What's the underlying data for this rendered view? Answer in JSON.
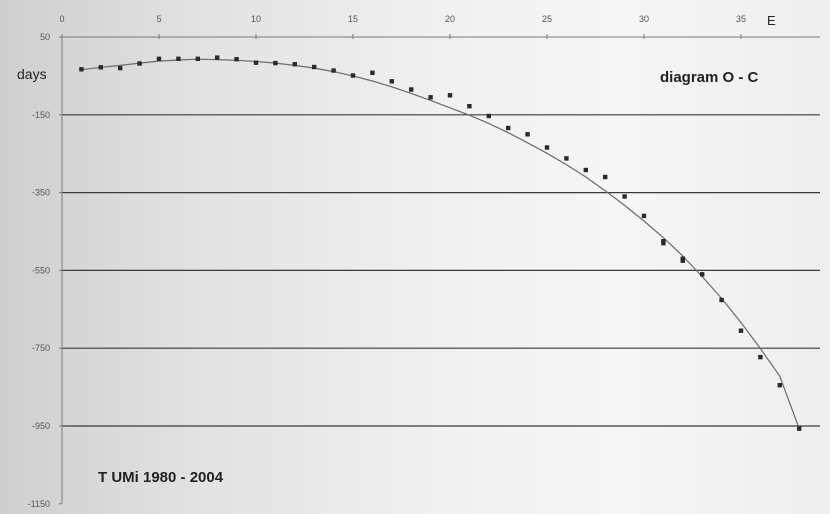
{
  "chart_data": {
    "type": "scatter",
    "title": "diagram O - C",
    "subtitle": "T UMi 1980 - 2004",
    "xlabel": "E",
    "ylabel": "days",
    "xlim": [
      0,
      38
    ],
    "ylim": [
      -1150,
      50
    ],
    "x_ticks": [
      0,
      5,
      10,
      15,
      20,
      25,
      30,
      35
    ],
    "y_ticks": [
      50,
      -150,
      -350,
      -550,
      -750,
      -950,
      -1150
    ],
    "y_tick_labels": [
      "50",
      "-150",
      "-350",
      "-550",
      "-750",
      "-950",
      "-1150"
    ],
    "horizontal_grid": true,
    "series": [
      {
        "kind": "points",
        "points": [
          [
            1,
            -33
          ],
          [
            2,
            -28
          ],
          [
            3,
            -30
          ],
          [
            4,
            -18
          ],
          [
            5,
            -6
          ],
          [
            6,
            -6
          ],
          [
            7,
            -6
          ],
          [
            8,
            -3
          ],
          [
            9,
            -7
          ],
          [
            10,
            -16
          ],
          [
            11,
            -17
          ],
          [
            12,
            -20
          ],
          [
            13,
            -27
          ],
          [
            14,
            -36
          ],
          [
            15,
            -49
          ],
          [
            16,
            -42
          ],
          [
            17,
            -64
          ],
          [
            18,
            -85
          ],
          [
            19,
            -105
          ],
          [
            20,
            -100
          ],
          [
            21,
            -128
          ],
          [
            22,
            -153
          ],
          [
            23,
            -184
          ],
          [
            24,
            -200
          ],
          [
            25,
            -234
          ],
          [
            26,
            -262
          ],
          [
            27,
            -292
          ],
          [
            28,
            -310
          ],
          [
            29,
            -360
          ],
          [
            30,
            -410
          ],
          [
            31,
            -475
          ],
          [
            31,
            -480
          ],
          [
            32,
            -520
          ],
          [
            32,
            -525
          ],
          [
            33,
            -560
          ],
          [
            34,
            -626
          ],
          [
            35,
            -705
          ],
          [
            36,
            -773
          ],
          [
            37,
            -845
          ],
          [
            38,
            -957
          ]
        ]
      },
      {
        "kind": "fit-curve",
        "points": [
          [
            1,
            -34
          ],
          [
            2,
            -28
          ],
          [
            3,
            -23
          ],
          [
            4,
            -17
          ],
          [
            5,
            -12
          ],
          [
            6,
            -9
          ],
          [
            7,
            -7
          ],
          [
            8,
            -8
          ],
          [
            9,
            -10
          ],
          [
            10,
            -13
          ],
          [
            11,
            -17
          ],
          [
            12,
            -23
          ],
          [
            13,
            -30
          ],
          [
            14,
            -39
          ],
          [
            15,
            -50
          ],
          [
            16,
            -63
          ],
          [
            17,
            -78
          ],
          [
            18,
            -95
          ],
          [
            19,
            -113
          ],
          [
            20,
            -132
          ],
          [
            21,
            -151
          ],
          [
            22,
            -172
          ],
          [
            23,
            -196
          ],
          [
            24,
            -222
          ],
          [
            25,
            -249
          ],
          [
            26,
            -278
          ],
          [
            27,
            -310
          ],
          [
            28,
            -345
          ],
          [
            29,
            -383
          ],
          [
            30,
            -423
          ],
          [
            31,
            -466
          ],
          [
            32,
            -513
          ],
          [
            33,
            -566
          ],
          [
            34,
            -622
          ],
          [
            35,
            -684
          ],
          [
            36,
            -751
          ],
          [
            37,
            -822
          ],
          [
            38,
            -957
          ]
        ]
      }
    ]
  }
}
